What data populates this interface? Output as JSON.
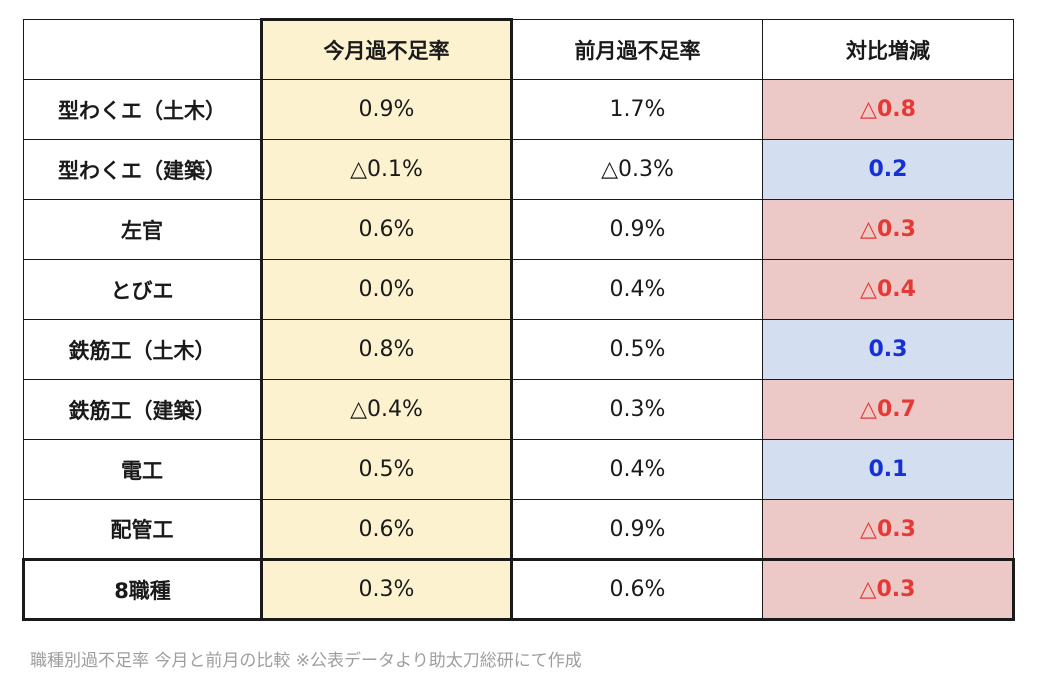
{
  "table": {
    "headers": [
      "",
      "今月過不足率",
      "前月過不足率",
      "対比増減"
    ],
    "rows": [
      {
        "label": "型わくエ（土木）",
        "current": "0.9%",
        "previous": "1.7%",
        "diff": "△0.8",
        "diff_type": "neg"
      },
      {
        "label": "型わくエ（建築）",
        "current": "△0.1%",
        "previous": "△0.3%",
        "diff": "0.2",
        "diff_type": "pos"
      },
      {
        "label": "左官",
        "current": "0.6%",
        "previous": "0.9%",
        "diff": "△0.3",
        "diff_type": "neg"
      },
      {
        "label": "とびエ",
        "current": "0.0%",
        "previous": "0.4%",
        "diff": "△0.4",
        "diff_type": "neg"
      },
      {
        "label": "鉄筋工（土木）",
        "current": "0.8%",
        "previous": "0.5%",
        "diff": "0.3",
        "diff_type": "pos"
      },
      {
        "label": "鉄筋工（建築）",
        "current": "△0.4%",
        "previous": "0.3%",
        "diff": "△0.7",
        "diff_type": "neg"
      },
      {
        "label": "電工",
        "current": "0.5%",
        "previous": "0.4%",
        "diff": "0.1",
        "diff_type": "pos"
      },
      {
        "label": "配管工",
        "current": "0.6%",
        "previous": "0.9%",
        "diff": "△0.3",
        "diff_type": "neg"
      },
      {
        "label": "8職種",
        "current": "0.3%",
        "previous": "0.6%",
        "diff": "△0.3",
        "diff_type": "neg"
      }
    ]
  },
  "caption": "職種別過不足率 今月と前月の比較 ※公表データより助太刀総研にて作成",
  "colors": {
    "current_column_bg": "#fdf2d0",
    "negative_bg": "#ecc9c7",
    "negative_text": "#e53935",
    "positive_bg": "#d3dff1",
    "positive_text": "#1530d6"
  }
}
